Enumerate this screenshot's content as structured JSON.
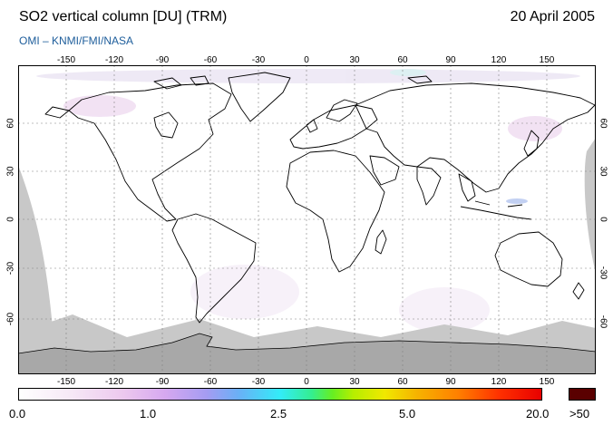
{
  "header": {
    "title": "SO2 vertical column [DU] (TRM)",
    "date": "20 April 2005",
    "credit": "OMI  –  KNMI/FMI/NASA"
  },
  "axes": {
    "lon_ticks": [
      "-150",
      "-120",
      "-90",
      "-60",
      "-30",
      "0",
      "30",
      "60",
      "90",
      "120",
      "150"
    ],
    "lat_ticks": [
      "60",
      "30",
      "0",
      "-30",
      "-60"
    ]
  },
  "colorbar": {
    "labels": [
      "0.0",
      "1.0",
      "2.5",
      "5.0",
      "20.0"
    ],
    "over_label": ">50"
  },
  "colors": {
    "no_data": "#c8c8c8",
    "antarctica": "#a8a8a8",
    "coast": "#000000"
  }
}
